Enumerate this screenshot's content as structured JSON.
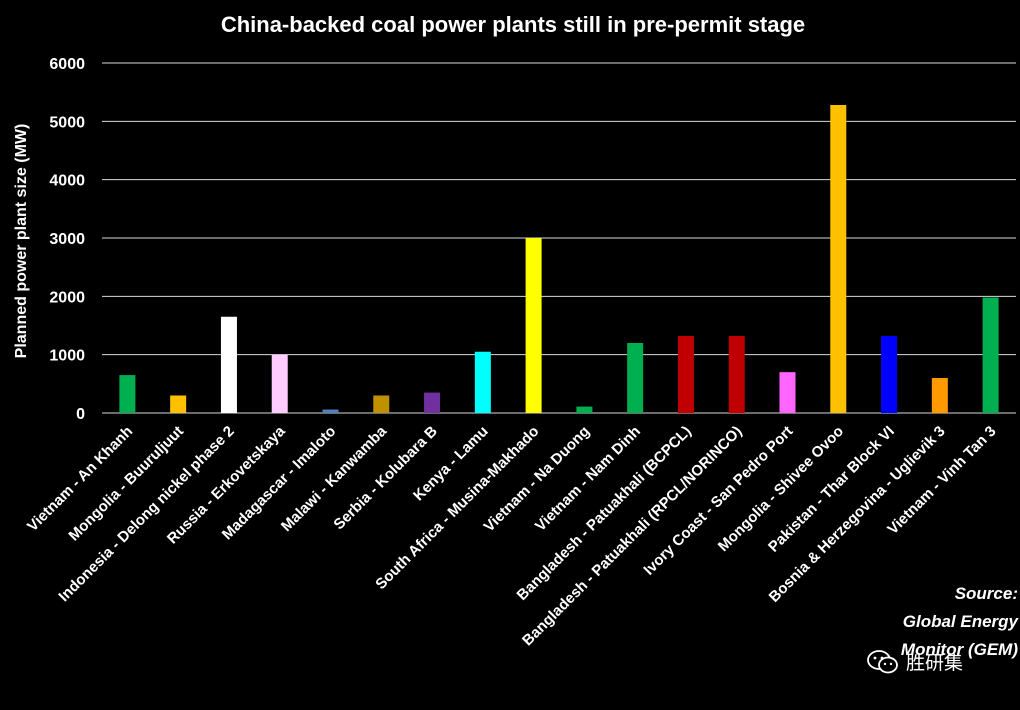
{
  "chart_data": {
    "type": "bar",
    "title": "China-backed coal power plants still in pre-permit stage",
    "ylabel": "Planned power plant size (MW)",
    "xlabel": "",
    "ylim": [
      0,
      6000
    ],
    "yticks": [
      0,
      1000,
      2000,
      3000,
      4000,
      5000,
      6000
    ],
    "grid": true,
    "categories": [
      "Vietnam - An Khanh",
      "Mongolia - Buuruljuut",
      "Indonesia - Delong nickel phase 2",
      "Russia - Erkovetskaya",
      "Madagascar - Imaloto",
      "Malawi - Kanwamba",
      "Serbia - Kolubara B",
      "Kenya - Lamu",
      "South Africa - Musina-Makhado",
      "Vietnam - Na Duong",
      "Vietnam - Nam Dinh",
      "Bangladesh - Patuakhali (BCPCL)",
      "Bangladesh - Patuakhali (RPCL/NORINCO)",
      "Ivory Coast - San Pedro Port",
      "Mongolia - Shivee Ovoo",
      "Pakistan - Thar Block VI",
      "Bosnia & Herzegovina - Uglievik 3",
      "Vietnam - Vinh Tan 3"
    ],
    "values": [
      650,
      300,
      1650,
      1000,
      60,
      300,
      350,
      1050,
      3000,
      110,
      1200,
      1320,
      1320,
      700,
      5280,
      1320,
      600,
      1980
    ],
    "colors": [
      "#00b050",
      "#ffc000",
      "#ffffff",
      "#ffccff",
      "#4f81bd",
      "#bf9000",
      "#7030a0",
      "#00ffff",
      "#ffff00",
      "#00b050",
      "#00b050",
      "#c00000",
      "#c00000",
      "#ff66ff",
      "#ffc000",
      "#0000ff",
      "#ff9900",
      "#00b050"
    ]
  },
  "source": {
    "line1": "Source:",
    "line2": "Global Energy",
    "line3": "Monitor (GEM)"
  },
  "watermark": {
    "icon": "wechat-icon",
    "text": "胜研集"
  }
}
